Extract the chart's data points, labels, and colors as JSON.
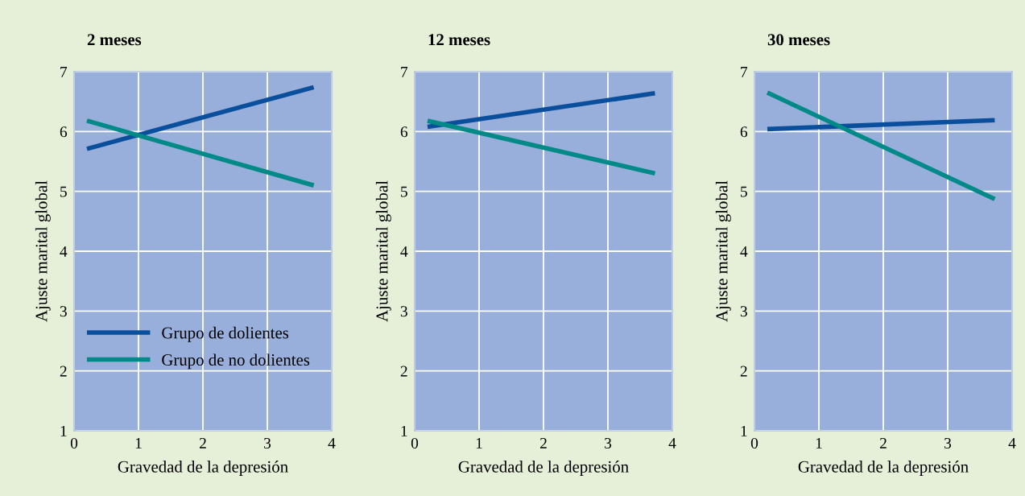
{
  "chart_data": [
    {
      "type": "line",
      "title": "2 meses",
      "xlabel": "Gravedad de la depresión",
      "ylabel": "Ajuste marital global",
      "xlim": [
        0,
        4
      ],
      "ylim": [
        1,
        7
      ],
      "xticks": [
        0,
        1,
        2,
        3,
        4
      ],
      "yticks": [
        1,
        2,
        3,
        4,
        5,
        6,
        7
      ],
      "grid": true,
      "legend": "lower left",
      "series": [
        {
          "name": "Grupo de dolientes",
          "color": "#0a4f9c",
          "x": [
            0.2,
            3.72
          ],
          "values": [
            5.71,
            6.74
          ]
        },
        {
          "name": "Grupo de no dolientes",
          "color": "#008a87",
          "x": [
            0.2,
            3.72
          ],
          "values": [
            6.18,
            5.1
          ]
        }
      ]
    },
    {
      "type": "line",
      "title": "12 meses",
      "xlabel": "Gravedad de la depresión",
      "ylabel": "Ajuste marital global",
      "xlim": [
        0,
        4
      ],
      "ylim": [
        1,
        7
      ],
      "xticks": [
        0,
        1,
        2,
        3,
        4
      ],
      "yticks": [
        1,
        2,
        3,
        4,
        5,
        6,
        7
      ],
      "grid": true,
      "series": [
        {
          "color": "#0a4f9c",
          "x": [
            0.2,
            3.73
          ],
          "values": [
            6.08,
            6.64
          ]
        },
        {
          "color": "#008a87",
          "x": [
            0.2,
            3.73
          ],
          "values": [
            6.18,
            5.3
          ]
        }
      ]
    },
    {
      "type": "line",
      "title": "30 meses",
      "xlabel": "Gravedad de la depresión",
      "ylabel": "Ajuste marital global",
      "xlim": [
        0,
        4
      ],
      "ylim": [
        1,
        7
      ],
      "xticks": [
        0,
        1,
        2,
        3,
        4
      ],
      "yticks": [
        1,
        2,
        3,
        4,
        5,
        6,
        7
      ],
      "grid": true,
      "series": [
        {
          "color": "#0a4f9c",
          "x": [
            0.2,
            3.73
          ],
          "values": [
            6.04,
            6.19
          ]
        },
        {
          "color": "#008a87",
          "x": [
            0.2,
            3.73
          ],
          "values": [
            6.65,
            4.87
          ]
        }
      ]
    }
  ]
}
